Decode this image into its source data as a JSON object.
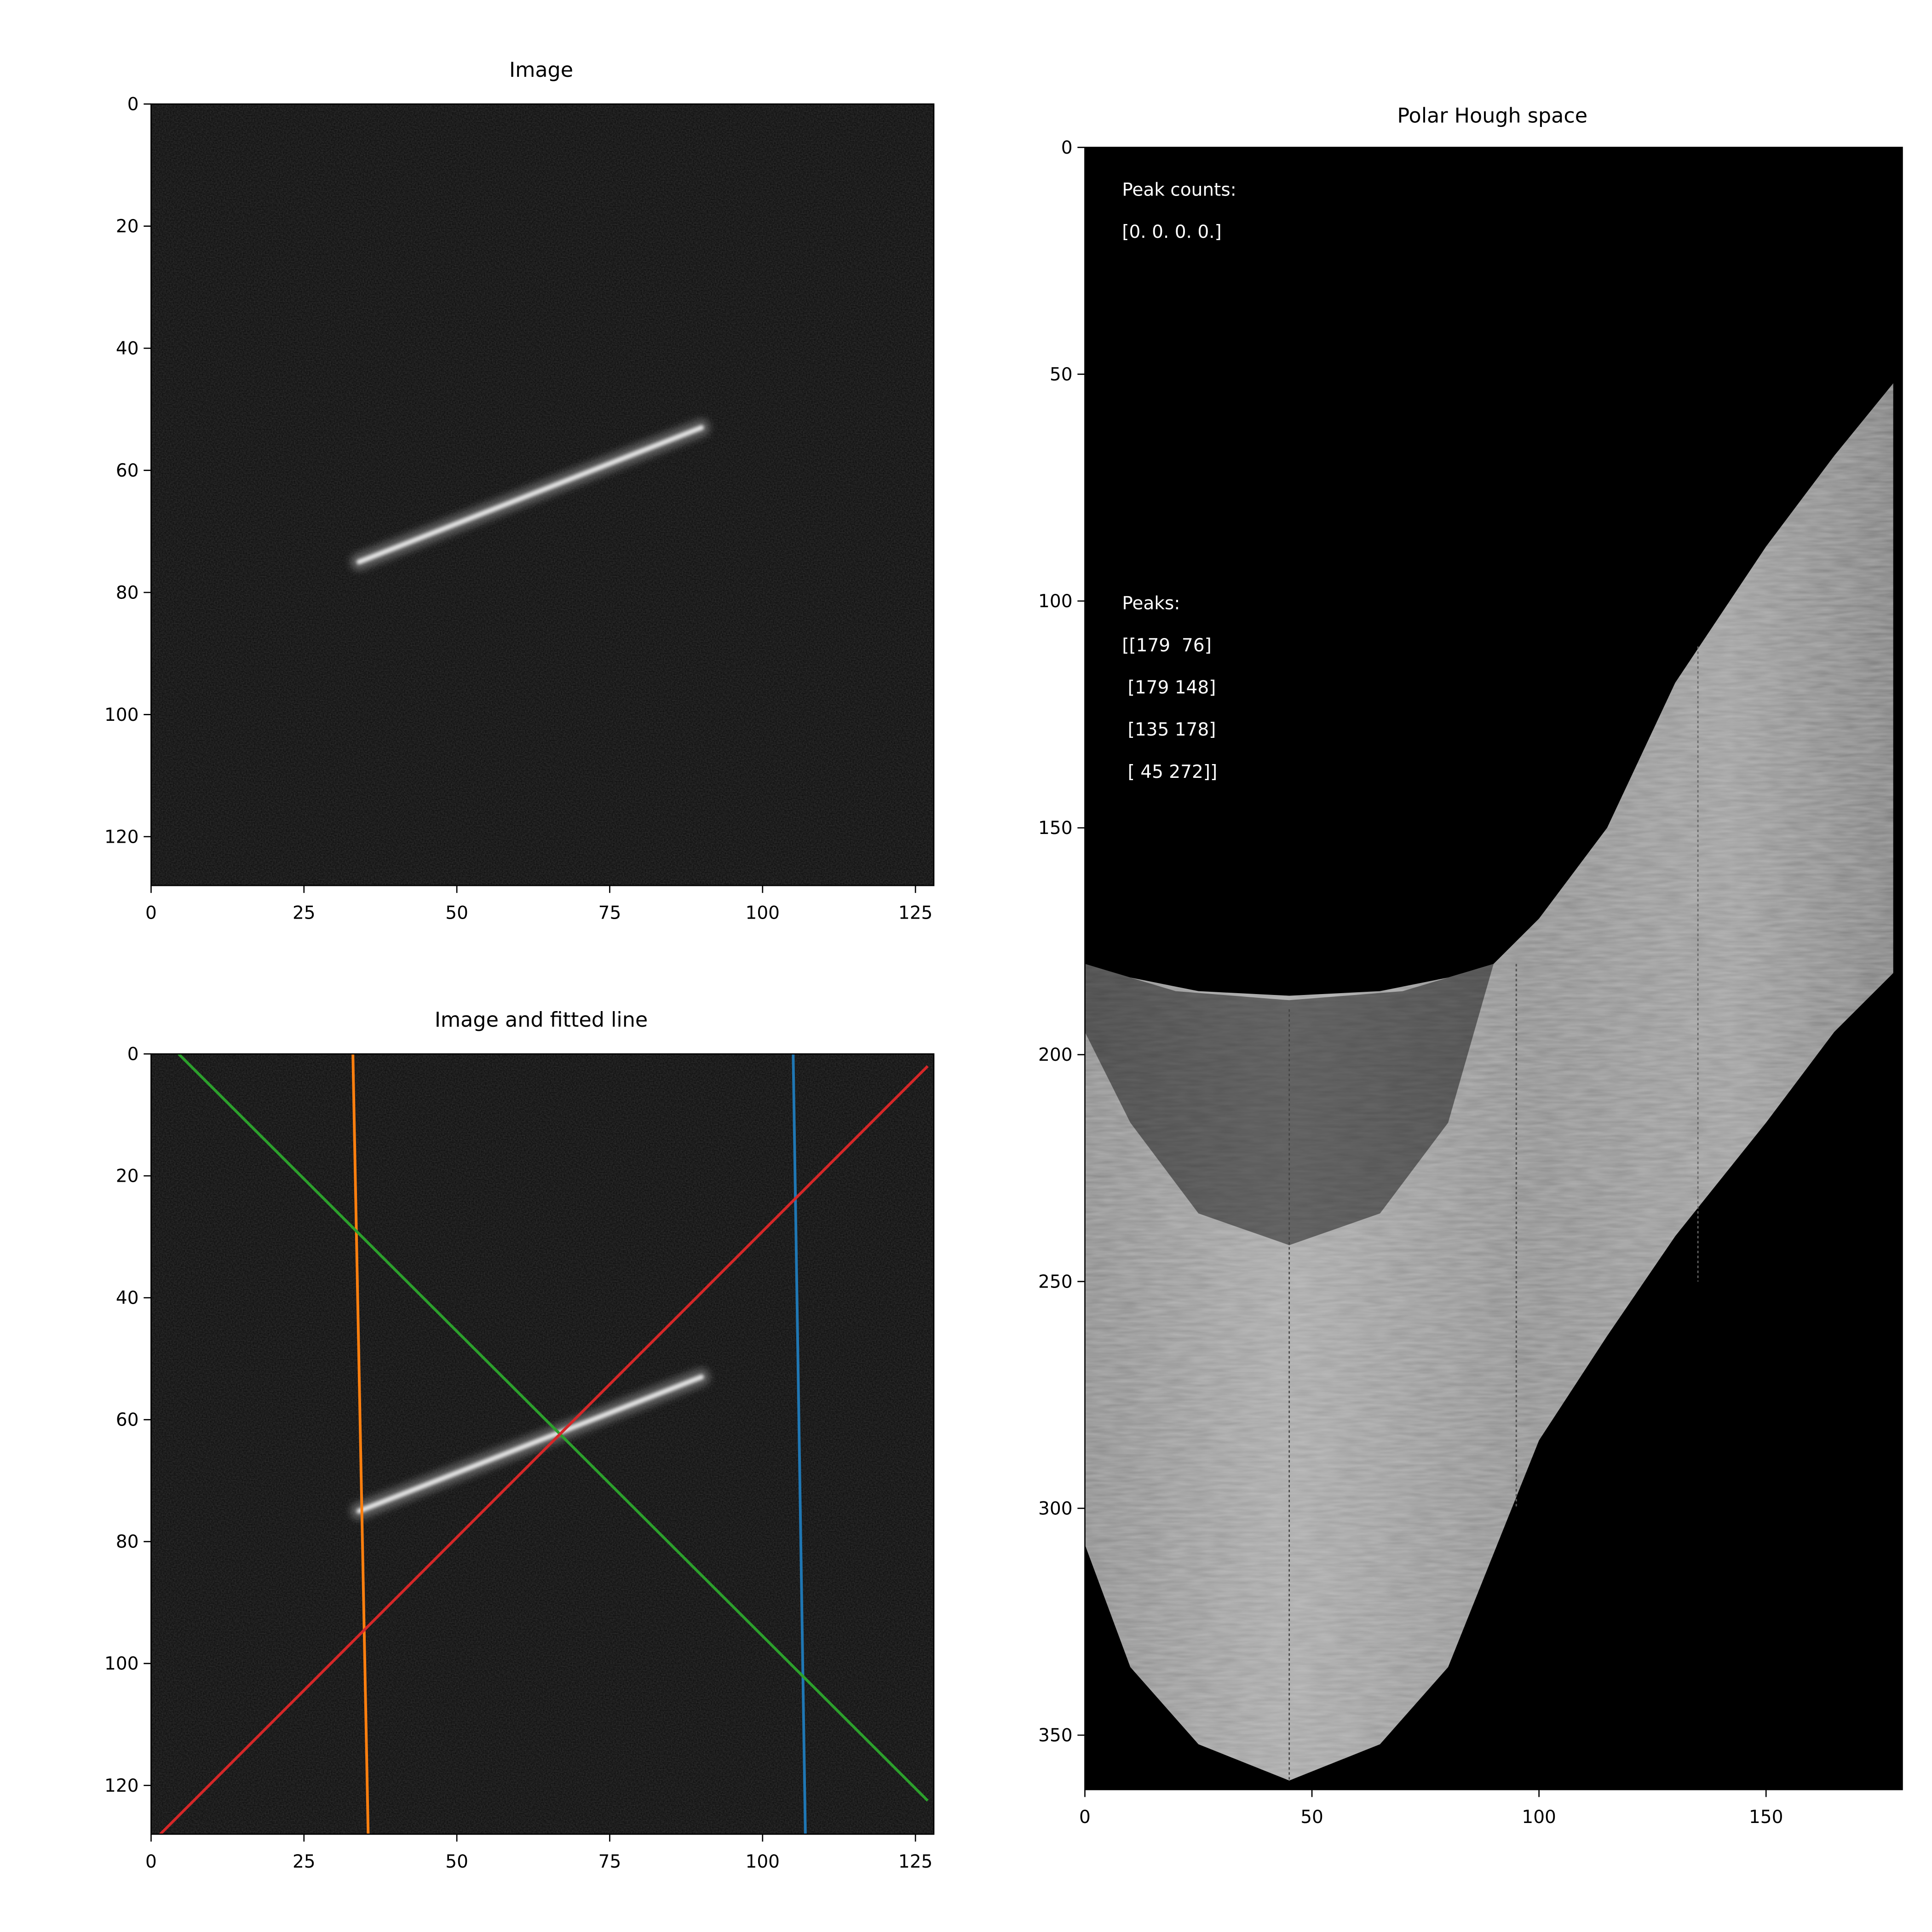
{
  "chart_data": [
    {
      "type": "heatmap",
      "title": "Image",
      "xlabel": "",
      "ylabel": "",
      "xlim": [
        0,
        128
      ],
      "ylim": [
        128,
        0
      ],
      "x_ticks": [
        "0",
        "25",
        "50",
        "75",
        "100",
        "125"
      ],
      "y_ticks": [
        "0",
        "20",
        "40",
        "60",
        "80",
        "100",
        "120"
      ],
      "colormap": "gray",
      "streak": {
        "x1": 34,
        "y1": 75,
        "x2": 90,
        "y2": 53
      }
    },
    {
      "type": "heatmap",
      "title": "Image and fitted line",
      "xlabel": "",
      "ylabel": "",
      "xlim": [
        0,
        128
      ],
      "ylim": [
        128,
        0
      ],
      "x_ticks": [
        "0",
        "25",
        "50",
        "75",
        "100",
        "125"
      ],
      "y_ticks": [
        "0",
        "20",
        "40",
        "60",
        "80",
        "100",
        "120"
      ],
      "colormap": "gray",
      "streak": {
        "x1": 34,
        "y1": 75,
        "x2": 90,
        "y2": 53
      },
      "series": [
        {
          "color": "#1f77b4",
          "x": [
            105,
            107
          ],
          "y": [
            0,
            128
          ]
        },
        {
          "color": "#ff7f0e",
          "x": [
            33,
            35.5
          ],
          "y": [
            0,
            128
          ]
        },
        {
          "color": "#2ca02c",
          "x": [
            4.5,
            127
          ],
          "y": [
            0,
            122.5
          ]
        },
        {
          "color": "#d62728",
          "x": [
            1.5,
            127
          ],
          "y": [
            128,
            2
          ]
        }
      ]
    },
    {
      "type": "heatmap",
      "title": "Polar Hough space",
      "xlabel": "",
      "ylabel": "",
      "xlim": [
        0,
        180
      ],
      "ylim": [
        362,
        0
      ],
      "x_ticks": [
        "0",
        "50",
        "100",
        "150"
      ],
      "y_ticks": [
        "0",
        "50",
        "100",
        "150",
        "200",
        "250",
        "300",
        "350"
      ],
      "colormap": "gray",
      "annotations": [
        "Peak counts:",
        "[0. 0. 0. 0.]",
        "Peaks:",
        "[[179  76]",
        " [179 148]",
        " [135 178]",
        " [ 45 272]]"
      ]
    }
  ]
}
